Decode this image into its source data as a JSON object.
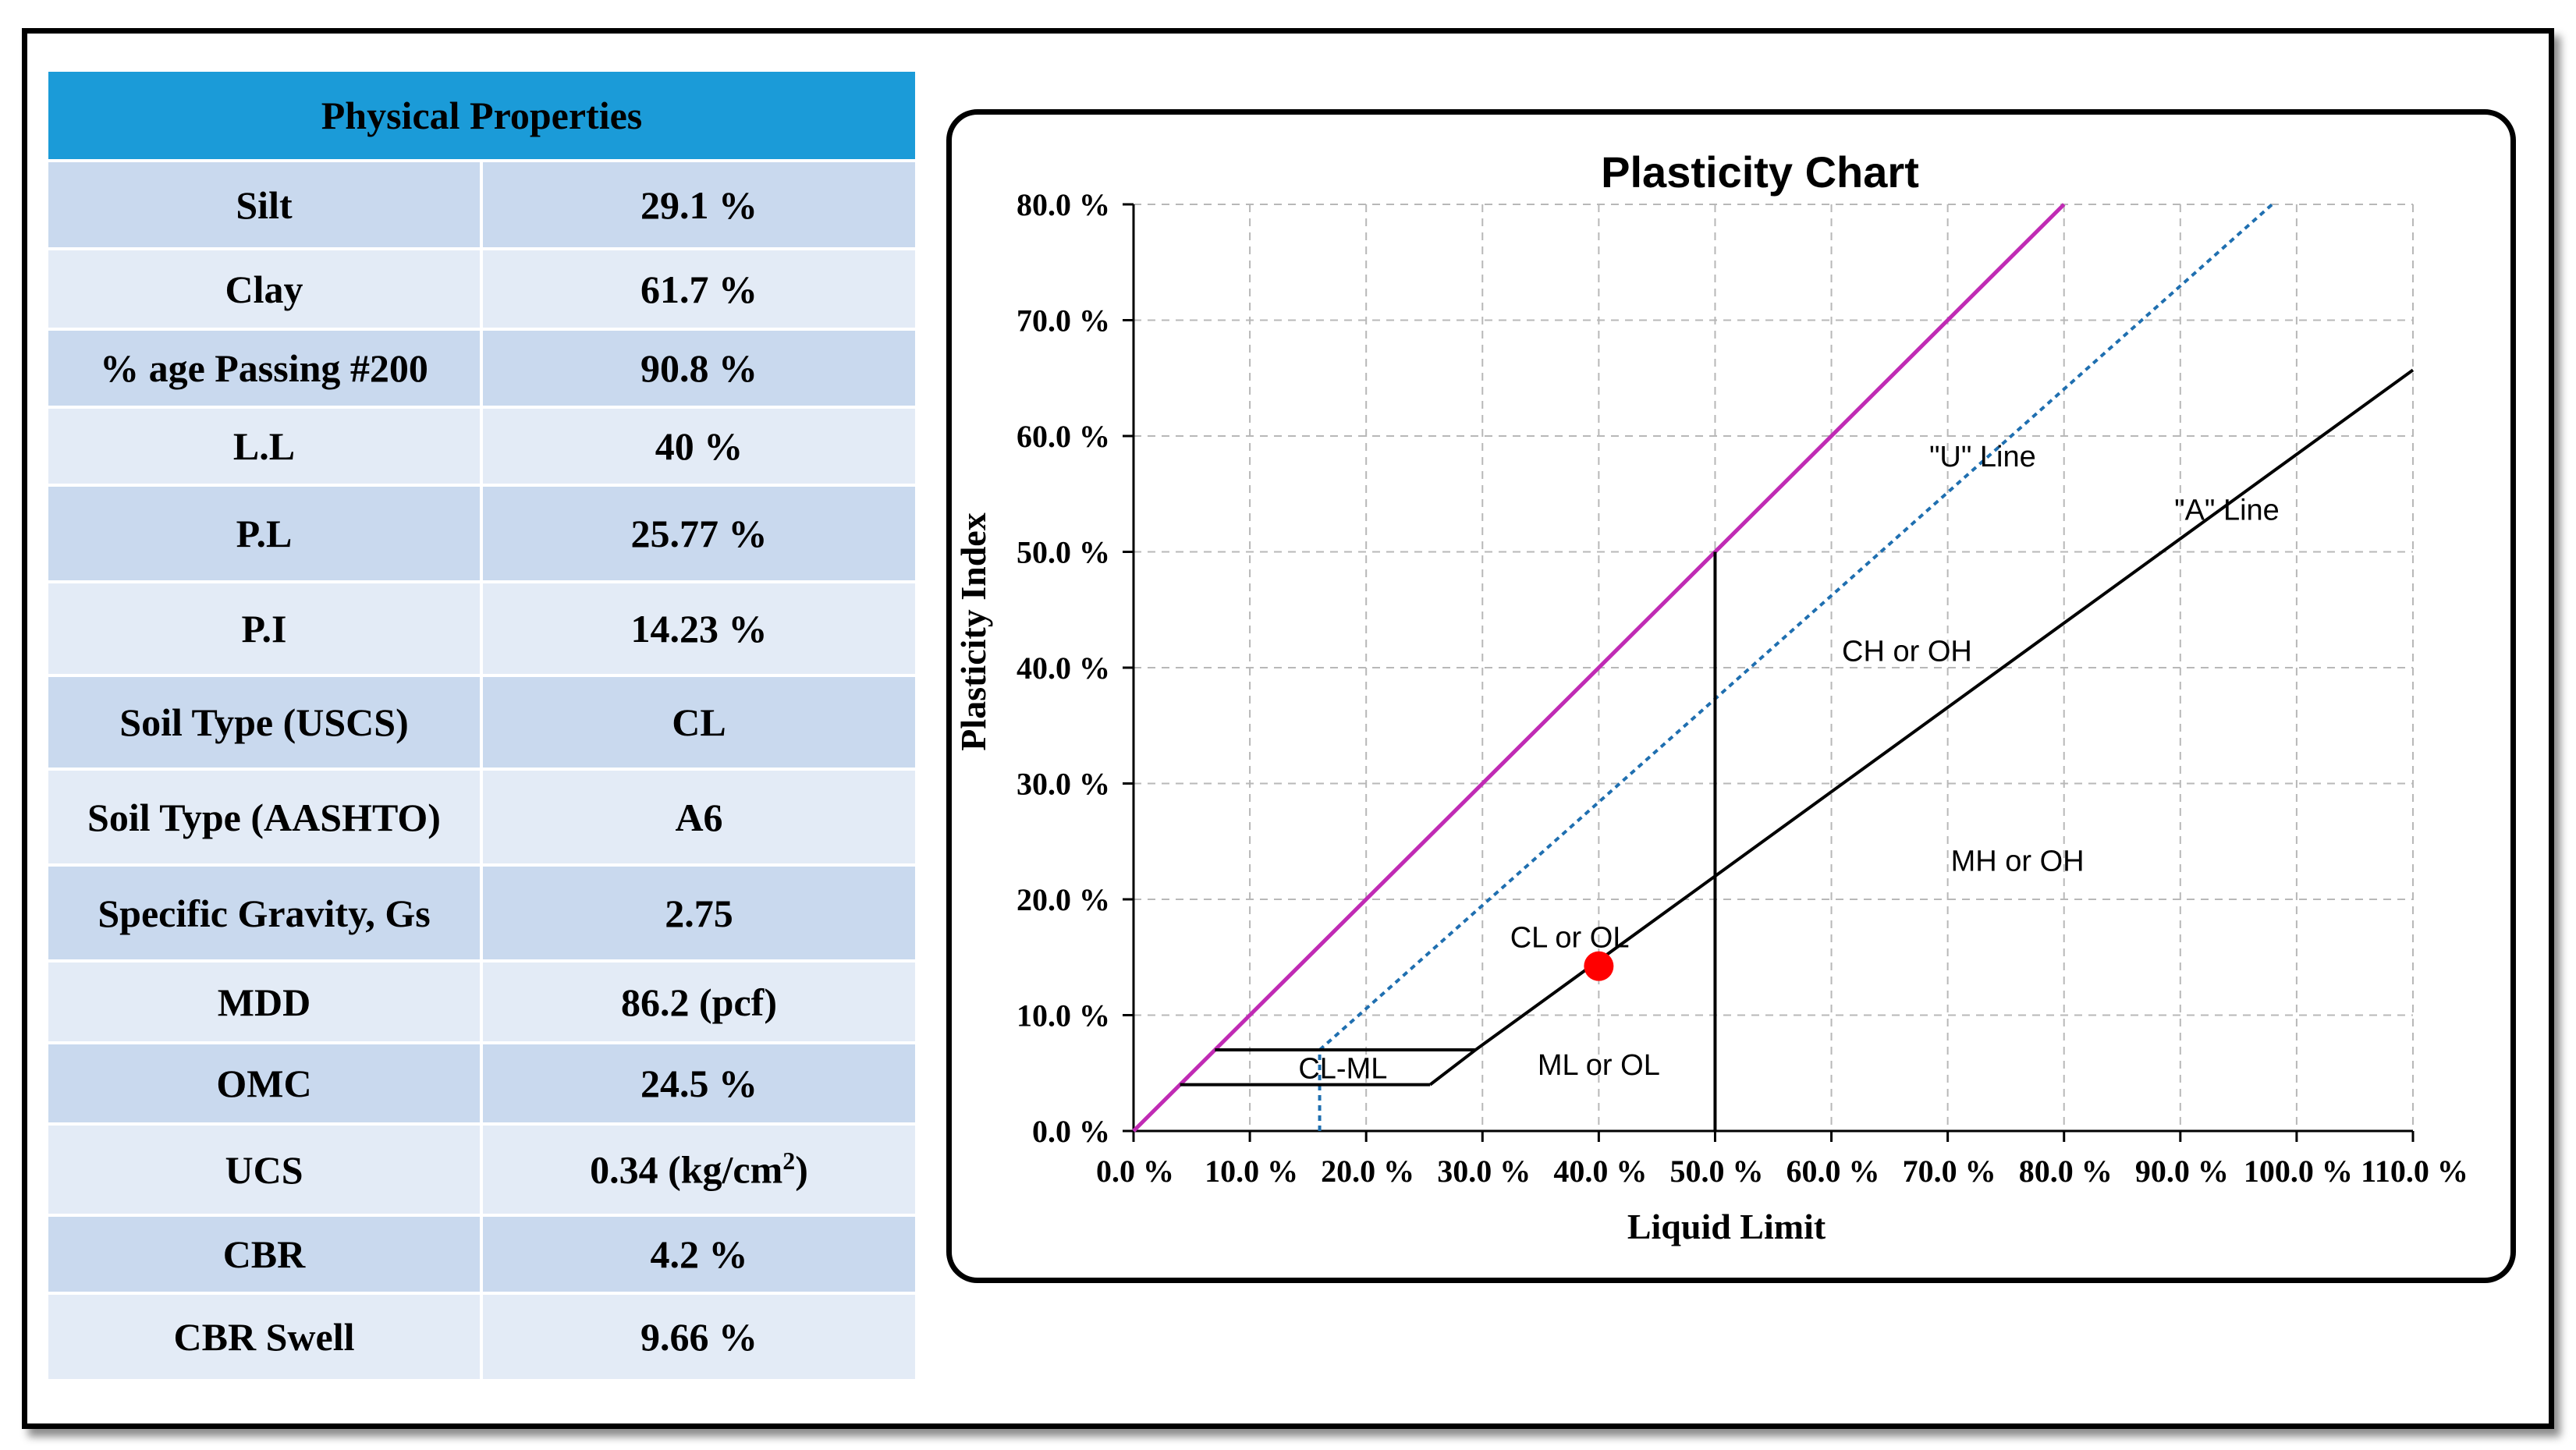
{
  "table": {
    "header": "Physical Properties",
    "rows": [
      {
        "label": "Silt",
        "value": "29.1 %"
      },
      {
        "label": "Clay",
        "value": "61.7 %"
      },
      {
        "label": "% age Passing #200",
        "value": "90.8 %"
      },
      {
        "label": "L.L",
        "value": "40 %"
      },
      {
        "label": "P.L",
        "value": "25.77 %"
      },
      {
        "label": "P.I",
        "value": "14.23 %"
      },
      {
        "label": "Soil Type (USCS)",
        "value": "CL"
      },
      {
        "label": "Soil Type (AASHTO)",
        "value": "A6"
      },
      {
        "label": "Specific Gravity, Gs",
        "value": "2.75"
      },
      {
        "label": "MDD",
        "value": "86.2 (pcf)"
      },
      {
        "label": "OMC",
        "value": "24.5 %"
      },
      {
        "label": "UCS",
        "value": "0.34 (kg/cm",
        "sup": "2",
        "value_suffix": ")"
      },
      {
        "label": "CBR",
        "value": "4.2 %"
      },
      {
        "label": "CBR Swell",
        "value": "9.66 %"
      }
    ]
  },
  "chart_data": {
    "type": "line",
    "title": "Plasticity Chart",
    "xlabel": "Liquid Limit",
    "ylabel": "Plasticity Index",
    "xlim": [
      0,
      110
    ],
    "ylim": [
      0,
      80
    ],
    "x_ticks": [
      "0.0 %",
      "10.0 %",
      "20.0 %",
      "30.0 %",
      "40.0 %",
      "50.0 %",
      "60.0 %",
      "70.0 %",
      "80.0 %",
      "90.0 %",
      "100.0 %",
      "110.0 %"
    ],
    "y_ticks": [
      "0.0 %",
      "10.0 %",
      "20.0 %",
      "30.0 %",
      "40.0 %",
      "50.0 %",
      "60.0 %",
      "70.0 %",
      "80.0 %"
    ],
    "grid": true,
    "series": [
      {
        "points": [
          [
            0,
            0
          ],
          [
            80,
            80
          ]
        ],
        "color": "#c02bb4",
        "style": "solid"
      },
      {
        "points": [
          [
            16,
            0
          ],
          [
            16,
            7
          ],
          [
            97.9,
            80
          ]
        ],
        "color": "#1f6fb0",
        "style": "dotted"
      },
      {
        "points": [
          [
            25.5,
            4
          ],
          [
            29.4,
            7
          ],
          [
            110,
            65.7
          ]
        ],
        "color": "#000000",
        "style": "solid"
      },
      {
        "points": [
          [
            4,
            4
          ],
          [
            25.5,
            4
          ]
        ],
        "color": "#000000",
        "style": "solid"
      },
      {
        "points": [
          [
            7,
            7
          ],
          [
            29.4,
            7
          ]
        ],
        "color": "#000000",
        "style": "solid"
      },
      {
        "points": [
          [
            50,
            0
          ],
          [
            50,
            50
          ]
        ],
        "color": "#000000",
        "style": "solid"
      }
    ],
    "sample_point": {
      "x": 40,
      "y": 14.23,
      "color": "#ff0000"
    },
    "annotations": [
      {
        "text": "\"U\" Line",
        "x": 73,
        "y": 58.3
      },
      {
        "text": "\"A\" Line",
        "x": 94,
        "y": 53.7
      },
      {
        "text": "CH or OH",
        "x": 66.5,
        "y": 41.5
      },
      {
        "text": "MH or OH",
        "x": 76,
        "y": 23.4
      },
      {
        "text": "CL or OL",
        "x": 37.5,
        "y": 16.8
      },
      {
        "text": "ML or OL",
        "x": 40,
        "y": 5.8
      },
      {
        "text": "CL-ML",
        "x": 18,
        "y": 5.5
      }
    ]
  }
}
